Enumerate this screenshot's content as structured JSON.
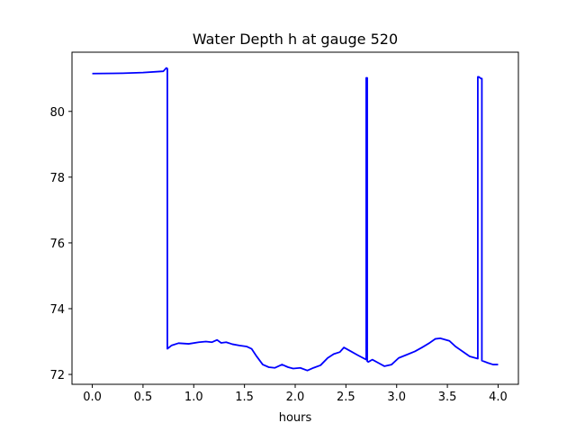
{
  "chart_data": {
    "type": "line",
    "title": "Water Depth h at gauge 520",
    "xlabel": "hours",
    "ylabel": "",
    "xlim": [
      -0.2,
      4.2
    ],
    "ylim": [
      71.7,
      81.8
    ],
    "xticks": [
      0.0,
      0.5,
      1.0,
      1.5,
      2.0,
      2.5,
      3.0,
      3.5,
      4.0
    ],
    "xtick_labels": [
      "0.0",
      "0.5",
      "1.0",
      "1.5",
      "2.0",
      "2.5",
      "3.0",
      "3.5",
      "4.0"
    ],
    "yticks": [
      72,
      74,
      76,
      78,
      80
    ],
    "ytick_labels": [
      "72",
      "74",
      "76",
      "78",
      "80"
    ],
    "grid": false,
    "series": [
      {
        "color": "#0000ff",
        "x": [
          0.0,
          0.3,
          0.5,
          0.7,
          0.73,
          0.74,
          0.74,
          0.78,
          0.85,
          0.95,
          1.05,
          1.12,
          1.18,
          1.23,
          1.27,
          1.32,
          1.38,
          1.45,
          1.52,
          1.57,
          1.62,
          1.68,
          1.74,
          1.8,
          1.87,
          1.93,
          1.98,
          2.05,
          2.12,
          2.18,
          2.25,
          2.32,
          2.38,
          2.44,
          2.48,
          2.55,
          2.62,
          2.7,
          2.7,
          2.71,
          2.71,
          2.72,
          2.76,
          2.82,
          2.88,
          2.95,
          3.02,
          3.1,
          3.18,
          3.25,
          3.32,
          3.38,
          3.43,
          3.52,
          3.58,
          3.65,
          3.72,
          3.8,
          3.8,
          3.81,
          3.83,
          3.84,
          3.84,
          3.9,
          3.95,
          4.0
        ],
        "y": [
          81.15,
          81.16,
          81.18,
          81.22,
          81.32,
          81.3,
          72.78,
          72.88,
          72.95,
          72.93,
          72.98,
          73.0,
          72.98,
          73.05,
          72.96,
          72.98,
          72.92,
          72.88,
          72.85,
          72.78,
          72.55,
          72.3,
          72.22,
          72.2,
          72.3,
          72.22,
          72.18,
          72.2,
          72.12,
          72.2,
          72.28,
          72.5,
          72.62,
          72.68,
          72.82,
          72.7,
          72.58,
          72.45,
          81.02,
          81.02,
          72.4,
          72.38,
          72.45,
          72.35,
          72.25,
          72.3,
          72.5,
          72.6,
          72.7,
          72.82,
          72.95,
          73.08,
          73.1,
          73.02,
          72.85,
          72.7,
          72.55,
          72.48,
          81.05,
          81.05,
          81.0,
          81.0,
          72.42,
          72.35,
          72.3,
          72.3
        ]
      }
    ]
  }
}
